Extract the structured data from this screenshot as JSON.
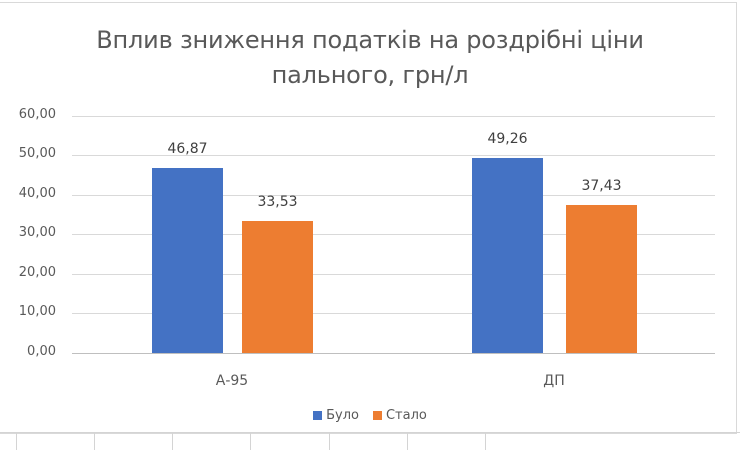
{
  "chart_data": {
    "type": "bar",
    "title": "Вплив зниження податків на роздрібні ціни пального, грн/л",
    "title_lines": [
      "Вплив зниження податків на роздрібні ціни",
      "пального, грн/л"
    ],
    "categories": [
      "А-95",
      "ДП"
    ],
    "series": [
      {
        "name": "Було",
        "color": "#4472c4",
        "values": [
          46.87,
          49.26
        ],
        "labels": [
          "46,87",
          "49,26"
        ]
      },
      {
        "name": "Стало",
        "color": "#ed7d31",
        "values": [
          33.53,
          37.43
        ],
        "labels": [
          "33,53",
          "37,43"
        ]
      }
    ],
    "xlabel": "",
    "ylabel": "",
    "ylim": [
      0,
      60
    ],
    "yticks": [
      "0,00",
      "10,00",
      "20,00",
      "30,00",
      "40,00",
      "50,00",
      "60,00"
    ],
    "grid": true,
    "legend_position": "bottom"
  }
}
